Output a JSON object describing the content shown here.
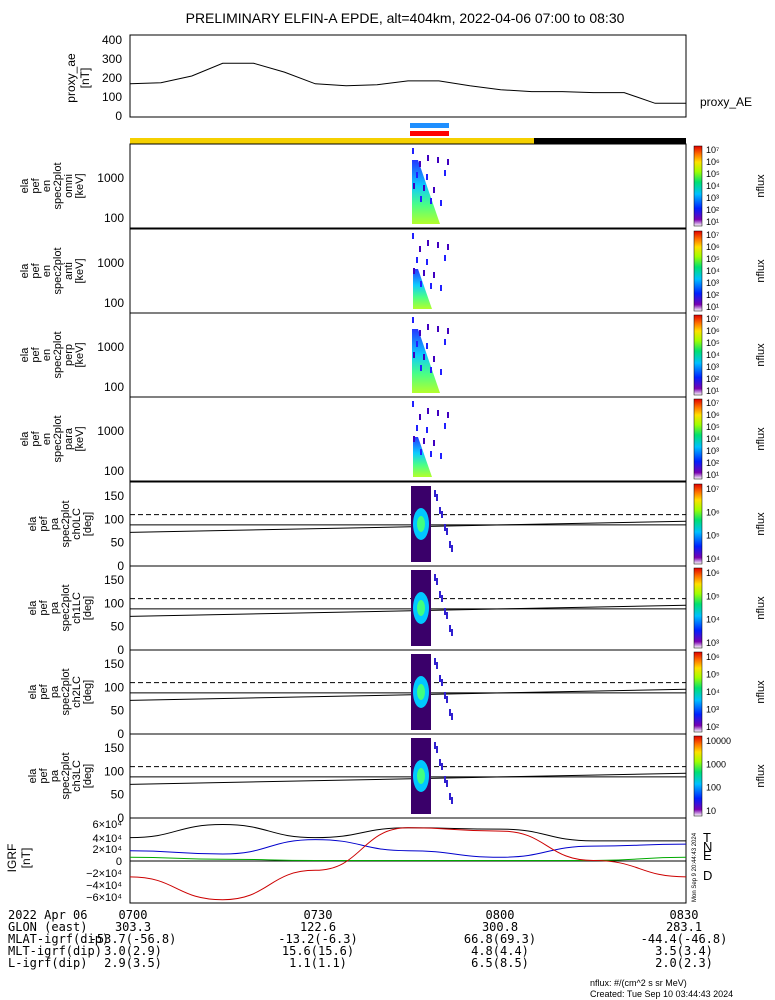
{
  "title": "PRELIMINARY ELFIN-A EPDE, alt=404km, 2022-04-06 07:00 to 08:30",
  "colors": {
    "day": "#f5d000",
    "night": "#000000",
    "science_blue": "#1f8fff",
    "science_red": "#ff0000",
    "T": "#000000",
    "N": "#0000cc",
    "E": "#00aa00",
    "D": "#cc0000"
  },
  "panels": {
    "proxy_ae": {
      "ylabel": [
        "proxy_ae",
        "[nT]"
      ],
      "yticks": [
        "400",
        "300",
        "200",
        "100",
        "0"
      ],
      "right_label": "proxy_AE"
    },
    "spec_en": [
      {
        "ylabel": [
          "ela",
          "pef",
          "en",
          "spec2plot",
          "omni",
          "[keV]"
        ],
        "yticks": [
          "1000",
          "100"
        ],
        "cb_label": "nflux",
        "cb_ticks": [
          "10⁷",
          "10⁶",
          "10⁵",
          "10⁴",
          "10³",
          "10²",
          "10¹"
        ]
      },
      {
        "ylabel": [
          "ela",
          "pef",
          "en",
          "spec2plot",
          "anti",
          "[keV]"
        ],
        "yticks": [
          "1000",
          "100"
        ],
        "cb_label": "nflux",
        "cb_ticks": [
          "10⁷",
          "10⁶",
          "10⁵",
          "10⁴",
          "10³",
          "10²",
          "10¹"
        ]
      },
      {
        "ylabel": [
          "ela",
          "pef",
          "en",
          "spec2plot",
          "perp",
          "[keV]"
        ],
        "yticks": [
          "1000",
          "100"
        ],
        "cb_label": "nflux",
        "cb_ticks": [
          "10⁷",
          "10⁶",
          "10⁵",
          "10⁴",
          "10³",
          "10²",
          "10¹"
        ]
      },
      {
        "ylabel": [
          "ela",
          "pef",
          "en",
          "spec2plot",
          "para",
          "[keV]"
        ],
        "yticks": [
          "1000",
          "100"
        ],
        "cb_label": "nflux",
        "cb_ticks": [
          "10⁷",
          "10⁶",
          "10⁵",
          "10⁴",
          "10³",
          "10²",
          "10¹"
        ]
      }
    ],
    "spec_pa": [
      {
        "ylabel": [
          "ela",
          "pef",
          "pa",
          "spec2plot",
          "ch0LC",
          "[deg]"
        ],
        "yticks": [
          "150",
          "100",
          "50",
          "0"
        ],
        "cb_label": "nflux",
        "cb_ticks": [
          "10⁷",
          "10⁶",
          "10⁵",
          "10⁴"
        ]
      },
      {
        "ylabel": [
          "ela",
          "pef",
          "pa",
          "spec2plot",
          "ch1LC",
          "[deg]"
        ],
        "yticks": [
          "150",
          "100",
          "50",
          "0"
        ],
        "cb_label": "nflux",
        "cb_ticks": [
          "10⁶",
          "10⁵",
          "10⁴",
          "10³"
        ]
      },
      {
        "ylabel": [
          "ela",
          "pef",
          "pa",
          "spec2plot",
          "ch2LC",
          "[deg]"
        ],
        "yticks": [
          "150",
          "100",
          "50",
          "0"
        ],
        "cb_label": "nflux",
        "cb_ticks": [
          "10⁶",
          "10⁵",
          "10⁴",
          "10³",
          "10²"
        ]
      },
      {
        "ylabel": [
          "ela",
          "pef",
          "pa",
          "spec2plot",
          "ch3LC",
          "[deg]"
        ],
        "yticks": [
          "150",
          "100",
          "50",
          "0"
        ],
        "cb_label": "nflux",
        "cb_ticks": [
          "10000",
          "1000",
          "100",
          "10"
        ]
      }
    ],
    "igrf": {
      "ylabel": [
        "IGRF",
        "[nT]"
      ],
      "yticks": [
        "6×10⁴",
        "4×10⁴",
        "2×10⁴",
        "0",
        "−2×10⁴",
        "−4×10⁴",
        "−6×10⁴"
      ],
      "legend": [
        "T",
        "N",
        "E",
        "D"
      ],
      "stamp": "Mon Sep 9 20:44:43 2024"
    }
  },
  "xaxis": {
    "date_label": "2022 Apr 06",
    "ticks": [
      "0700",
      "0730",
      "0800",
      "0830"
    ],
    "rows": [
      {
        "label": "GLON (east)",
        "values": [
          "303.3",
          "122.6",
          "300.8",
          "283.1"
        ]
      },
      {
        "label": "MLAT-igrf(dip)",
        "values": [
          "-53.7(-56.8)",
          "-13.2(-6.3)",
          "66.8(69.3)",
          "-44.4(-46.8)"
        ]
      },
      {
        "label": "MLT-igrf(dip)",
        "values": [
          "3.0(2.9)",
          "15.6(15.6)",
          "4.8(4.4)",
          "3.5(3.4)"
        ]
      },
      {
        "label": "L-igrf(dip)",
        "values": [
          "2.9(3.5)",
          "1.1(1.1)",
          "6.5(8.5)",
          "2.0(2.3)"
        ]
      }
    ]
  },
  "footer": {
    "units": "nflux: #/(cm^2 s sr MeV)",
    "created": "Created: Tue Sep 10 03:44:43 2024"
  },
  "chart_data": {
    "type": "line",
    "x_range": [
      "2022-04-06 07:00",
      "2022-04-06 08:30"
    ],
    "proxy_ae": {
      "x": [
        "07:00",
        "07:05",
        "07:10",
        "07:15",
        "07:20",
        "07:25",
        "07:30",
        "07:35",
        "07:40",
        "07:45",
        "07:50",
        "07:55",
        "08:00",
        "08:05",
        "08:10",
        "08:15",
        "08:20",
        "08:25",
        "08:30"
      ],
      "y": [
        170,
        175,
        210,
        275,
        275,
        230,
        170,
        160,
        165,
        185,
        185,
        160,
        140,
        130,
        130,
        125,
        125,
        70,
        70
      ],
      "ylim": [
        0,
        420
      ]
    },
    "science_zone": {
      "start": "07:46",
      "end": "07:50"
    },
    "pa_loss_cone_deg": [
      110,
      88
    ],
    "igrf": {
      "ylim": [
        -65000,
        65000
      ],
      "series": [
        {
          "name": "T",
          "x": [
            "07:00",
            "07:15",
            "07:30",
            "07:45",
            "08:00",
            "08:15",
            "08:30"
          ],
          "y": [
            35000,
            55000,
            35000,
            50000,
            48000,
            30000,
            30000
          ]
        },
        {
          "name": "N",
          "x": [
            "07:00",
            "07:15",
            "07:30",
            "07:45",
            "08:00",
            "08:15",
            "08:30"
          ],
          "y": [
            15000,
            10000,
            32000,
            15000,
            5000,
            22000,
            25000
          ]
        },
        {
          "name": "E",
          "x": [
            "07:00",
            "07:15",
            "07:30",
            "07:45",
            "08:00",
            "08:15",
            "08:30"
          ],
          "y": [
            5000,
            2000,
            0,
            0,
            0,
            0,
            5000
          ]
        },
        {
          "name": "D",
          "x": [
            "07:00",
            "07:15",
            "07:30",
            "07:45",
            "08:00",
            "08:15",
            "08:30"
          ],
          "y": [
            -25000,
            -60000,
            -15000,
            50000,
            45000,
            0,
            -25000
          ]
        }
      ]
    }
  }
}
